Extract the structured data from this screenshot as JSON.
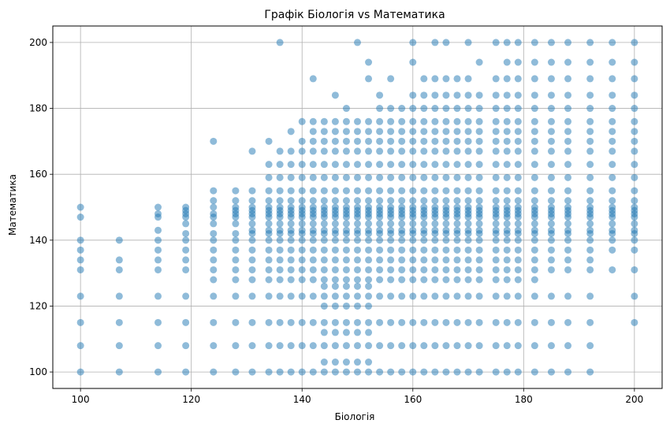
{
  "chart_data": {
    "type": "scatter",
    "title": "Графік Біологія vs Математика",
    "xlabel": "Біологія",
    "ylabel": "Математика",
    "xlim": [
      95,
      205
    ],
    "ylim": [
      95,
      205
    ],
    "xticks": [
      100,
      120,
      140,
      160,
      180,
      200
    ],
    "yticks": [
      100,
      120,
      140,
      160,
      180,
      200
    ],
    "grid": true,
    "legend": "none",
    "marker_color": "#1f77b4",
    "marker_alpha": 0.5,
    "columns": [
      {
        "x": 100,
        "y": [
          100,
          108,
          115,
          123,
          131,
          134,
          137,
          140,
          147,
          150
        ]
      },
      {
        "x": 107,
        "y": [
          100,
          108,
          115,
          123,
          131,
          134,
          140
        ]
      },
      {
        "x": 114,
        "y": [
          100,
          108,
          115,
          123,
          131,
          134,
          137,
          140,
          143,
          147,
          148,
          150
        ]
      },
      {
        "x": 119,
        "y": [
          100,
          108,
          115,
          123,
          131,
          134,
          137,
          140,
          142,
          145,
          147,
          148,
          149,
          150
        ]
      },
      {
        "x": 124,
        "y": [
          100,
          108,
          115,
          123,
          128,
          131,
          134,
          137,
          140,
          142,
          145,
          147,
          148,
          150,
          152,
          155,
          170
        ]
      },
      {
        "x": 128,
        "y": [
          100,
          108,
          115,
          123,
          128,
          131,
          134,
          137,
          140,
          142,
          145,
          147,
          148,
          149,
          150,
          152,
          155
        ]
      },
      {
        "x": 131,
        "y": [
          100,
          108,
          115,
          123,
          128,
          131,
          134,
          137,
          140,
          142,
          143,
          145,
          147,
          148,
          149,
          150,
          152,
          155,
          167
        ]
      },
      {
        "x": 134,
        "y": [
          100,
          108,
          115,
          123,
          128,
          131,
          134,
          137,
          140,
          142,
          143,
          145,
          147,
          148,
          149,
          150,
          152,
          155,
          159,
          163,
          170
        ]
      },
      {
        "x": 136,
        "y": [
          100,
          108,
          115,
          123,
          128,
          131,
          134,
          137,
          140,
          142,
          143,
          145,
          147,
          148,
          149,
          150,
          152,
          155,
          159,
          163,
          167,
          200
        ]
      },
      {
        "x": 138,
        "y": [
          100,
          108,
          115,
          123,
          128,
          131,
          134,
          137,
          140,
          142,
          143,
          145,
          147,
          148,
          149,
          150,
          152,
          155,
          159,
          163,
          167,
          173
        ]
      },
      {
        "x": 140,
        "y": [
          100,
          108,
          115,
          123,
          128,
          131,
          134,
          137,
          140,
          142,
          143,
          145,
          147,
          148,
          149,
          150,
          152,
          155,
          159,
          163,
          167,
          170,
          176
        ]
      },
      {
        "x": 142,
        "y": [
          100,
          108,
          115,
          123,
          128,
          131,
          134,
          137,
          140,
          142,
          143,
          145,
          147,
          148,
          149,
          150,
          152,
          155,
          159,
          163,
          167,
          170,
          173,
          176,
          189
        ]
      },
      {
        "x": 144,
        "y": [
          100,
          103,
          108,
          112,
          115,
          120,
          123,
          126,
          128,
          131,
          134,
          137,
          140,
          142,
          143,
          145,
          147,
          148,
          149,
          150,
          152,
          155,
          159,
          163,
          167,
          170,
          173,
          176
        ]
      },
      {
        "x": 146,
        "y": [
          100,
          103,
          108,
          112,
          115,
          120,
          123,
          126,
          128,
          131,
          134,
          137,
          140,
          142,
          143,
          145,
          147,
          148,
          149,
          150,
          152,
          155,
          159,
          163,
          167,
          170,
          173,
          176,
          184
        ]
      },
      {
        "x": 148,
        "y": [
          100,
          103,
          108,
          112,
          115,
          120,
          123,
          126,
          128,
          131,
          134,
          137,
          140,
          142,
          143,
          145,
          147,
          148,
          149,
          150,
          152,
          155,
          159,
          163,
          167,
          170,
          173,
          176,
          180
        ]
      },
      {
        "x": 150,
        "y": [
          100,
          103,
          108,
          112,
          115,
          120,
          123,
          126,
          128,
          131,
          134,
          137,
          140,
          142,
          143,
          145,
          147,
          148,
          149,
          150,
          152,
          155,
          159,
          163,
          167,
          170,
          173,
          176,
          200
        ]
      },
      {
        "x": 152,
        "y": [
          100,
          103,
          108,
          112,
          115,
          120,
          123,
          126,
          128,
          131,
          134,
          137,
          140,
          142,
          143,
          145,
          147,
          148,
          149,
          150,
          152,
          155,
          159,
          163,
          167,
          170,
          173,
          176,
          189,
          194
        ]
      },
      {
        "x": 154,
        "y": [
          100,
          108,
          115,
          123,
          128,
          131,
          134,
          137,
          140,
          142,
          143,
          145,
          147,
          148,
          149,
          150,
          152,
          155,
          159,
          163,
          167,
          170,
          173,
          176,
          180,
          184
        ]
      },
      {
        "x": 156,
        "y": [
          100,
          108,
          115,
          123,
          128,
          131,
          134,
          137,
          140,
          142,
          143,
          145,
          147,
          148,
          149,
          150,
          152,
          155,
          159,
          163,
          167,
          170,
          173,
          176,
          180,
          189
        ]
      },
      {
        "x": 158,
        "y": [
          100,
          108,
          115,
          123,
          128,
          131,
          134,
          137,
          140,
          142,
          143,
          145,
          147,
          148,
          149,
          150,
          152,
          155,
          159,
          163,
          167,
          170,
          173,
          176,
          180
        ]
      },
      {
        "x": 160,
        "y": [
          100,
          108,
          115,
          123,
          128,
          131,
          134,
          137,
          140,
          142,
          143,
          145,
          147,
          148,
          149,
          150,
          152,
          155,
          159,
          163,
          167,
          170,
          173,
          176,
          180,
          184,
          194,
          200
        ]
      },
      {
        "x": 162,
        "y": [
          100,
          108,
          115,
          123,
          128,
          131,
          134,
          137,
          140,
          142,
          143,
          145,
          147,
          148,
          149,
          150,
          152,
          155,
          159,
          163,
          167,
          170,
          173,
          176,
          180,
          184,
          189
        ]
      },
      {
        "x": 164,
        "y": [
          100,
          108,
          115,
          123,
          128,
          131,
          134,
          137,
          140,
          142,
          143,
          145,
          147,
          148,
          149,
          150,
          152,
          155,
          159,
          163,
          167,
          170,
          173,
          176,
          180,
          184,
          189,
          200
        ]
      },
      {
        "x": 166,
        "y": [
          100,
          108,
          115,
          123,
          128,
          131,
          134,
          137,
          140,
          142,
          143,
          145,
          147,
          148,
          149,
          150,
          152,
          155,
          159,
          163,
          167,
          170,
          173,
          176,
          180,
          184,
          189,
          200
        ]
      },
      {
        "x": 168,
        "y": [
          100,
          108,
          115,
          123,
          128,
          131,
          134,
          137,
          140,
          142,
          143,
          145,
          147,
          148,
          149,
          150,
          152,
          155,
          159,
          163,
          167,
          170,
          173,
          176,
          180,
          184,
          189
        ]
      },
      {
        "x": 170,
        "y": [
          100,
          108,
          115,
          123,
          128,
          131,
          134,
          137,
          140,
          142,
          143,
          145,
          147,
          148,
          149,
          150,
          152,
          155,
          159,
          163,
          167,
          170,
          173,
          176,
          180,
          184,
          189,
          200
        ]
      },
      {
        "x": 172,
        "y": [
          100,
          108,
          115,
          123,
          128,
          131,
          134,
          137,
          140,
          142,
          143,
          145,
          147,
          148,
          149,
          150,
          152,
          155,
          159,
          163,
          167,
          170,
          173,
          176,
          180,
          184,
          194
        ]
      },
      {
        "x": 175,
        "y": [
          100,
          108,
          115,
          123,
          128,
          131,
          134,
          137,
          140,
          142,
          143,
          145,
          147,
          148,
          149,
          150,
          152,
          155,
          159,
          163,
          167,
          170,
          173,
          176,
          180,
          184,
          189,
          200
        ]
      },
      {
        "x": 177,
        "y": [
          100,
          108,
          115,
          123,
          128,
          131,
          134,
          137,
          140,
          142,
          143,
          145,
          147,
          148,
          149,
          150,
          152,
          155,
          159,
          163,
          167,
          170,
          173,
          176,
          180,
          184,
          189,
          194,
          200
        ]
      },
      {
        "x": 179,
        "y": [
          100,
          108,
          115,
          123,
          128,
          131,
          134,
          137,
          140,
          142,
          143,
          145,
          147,
          148,
          149,
          150,
          152,
          155,
          159,
          163,
          167,
          170,
          173,
          176,
          180,
          184,
          189,
          194,
          200
        ]
      },
      {
        "x": 182,
        "y": [
          100,
          108,
          115,
          123,
          128,
          131,
          134,
          137,
          140,
          142,
          143,
          145,
          147,
          148,
          149,
          150,
          152,
          155,
          159,
          163,
          167,
          170,
          173,
          176,
          180,
          184,
          189,
          194,
          200
        ]
      },
      {
        "x": 185,
        "y": [
          100,
          108,
          115,
          123,
          131,
          134,
          137,
          140,
          142,
          143,
          145,
          147,
          148,
          149,
          150,
          152,
          155,
          159,
          163,
          167,
          170,
          173,
          176,
          180,
          184,
          189,
          194,
          200
        ]
      },
      {
        "x": 188,
        "y": [
          100,
          108,
          115,
          123,
          131,
          134,
          137,
          140,
          142,
          143,
          145,
          147,
          148,
          149,
          150,
          152,
          155,
          159,
          163,
          167,
          170,
          173,
          176,
          180,
          184,
          189,
          194,
          200
        ]
      },
      {
        "x": 192,
        "y": [
          100,
          108,
          115,
          123,
          131,
          134,
          137,
          140,
          142,
          143,
          145,
          147,
          148,
          149,
          150,
          152,
          155,
          159,
          163,
          167,
          170,
          173,
          176,
          180,
          184,
          189,
          194,
          200
        ]
      },
      {
        "x": 196,
        "y": [
          131,
          137,
          140,
          142,
          143,
          145,
          147,
          148,
          149,
          150,
          152,
          155,
          159,
          163,
          167,
          170,
          173,
          176,
          180,
          184,
          189,
          194,
          200
        ]
      },
      {
        "x": 200,
        "y": [
          115,
          123,
          131,
          137,
          140,
          142,
          143,
          145,
          147,
          148,
          149,
          150,
          152,
          155,
          159,
          163,
          167,
          170,
          173,
          176,
          180,
          184,
          189,
          194,
          200
        ]
      }
    ]
  }
}
